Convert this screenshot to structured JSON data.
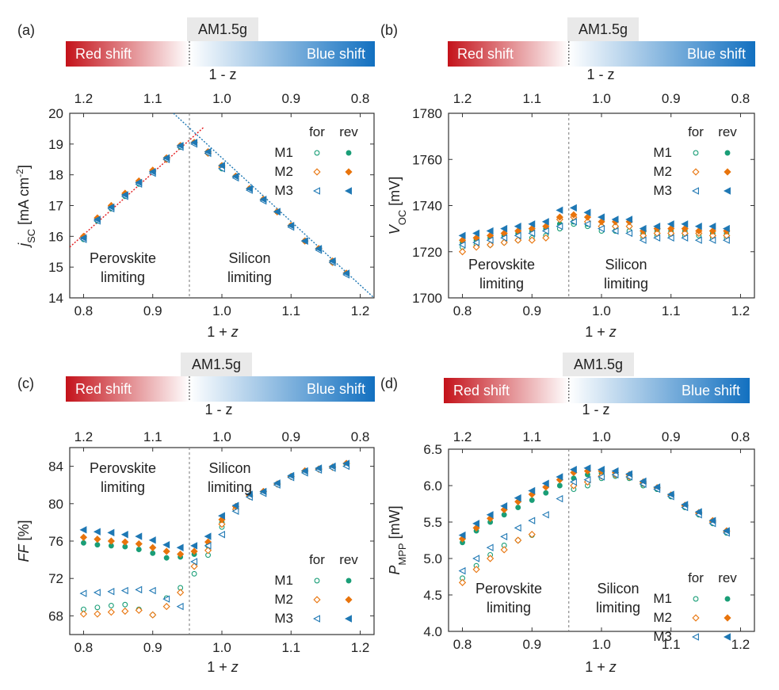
{
  "figure": {
    "spectrum_bar": {
      "red_label": "Red shift",
      "blue_label": "Blue shift",
      "am_label": "AM1.5g",
      "axis_label": "1 - z"
    },
    "legend": {
      "for_label": "for",
      "rev_label": "rev",
      "series": [
        "M1",
        "M2",
        "M3"
      ]
    },
    "colors": {
      "M1": "#1a9e77",
      "M2": "#e8740c",
      "M3": "#1f78b4",
      "red_fit": "#e31a1c",
      "blue_fit": "#1f78b4",
      "perovskite_text": "#d62728",
      "silicon_text": "#1f78b4",
      "bar_red": "#c4121a",
      "bar_blue": "#1270c0"
    }
  },
  "chart_data": [
    {
      "panel": "(a)",
      "type": "scatter",
      "xlabel": "1 + z",
      "ylabel": "j_SC [mA cm^-2]",
      "ylabel_parts": {
        "main": "j",
        "sub": "SC",
        "unit": " [mA cm",
        "sup": "-2",
        "end": "]"
      },
      "xlim": [
        0.78,
        1.22
      ],
      "ylim": [
        14,
        20
      ],
      "xticks": [
        "0.8",
        "0.9",
        "1.0",
        "1.1",
        "1.2"
      ],
      "yticks": [
        "14",
        "15",
        "16",
        "17",
        "18",
        "19",
        "20"
      ],
      "top_ticks": [
        "1.2",
        "1.1",
        "1.0",
        "0.9",
        "0.8"
      ],
      "divider_x": 0.953,
      "annotations": {
        "perovskite": [
          "Perovskite",
          "limiting"
        ],
        "silicon": [
          "Silicon",
          "limiting"
        ]
      },
      "fit_lines": [
        {
          "color": "red",
          "x": [
            0.78,
            0.974
          ],
          "y": [
            15.65,
            19.55
          ]
        },
        {
          "color": "blue",
          "x": [
            0.93,
            1.22
          ],
          "y": [
            20.0,
            14.0
          ]
        }
      ],
      "x": [
        0.8,
        0.82,
        0.84,
        0.86,
        0.88,
        0.9,
        0.92,
        0.94,
        0.96,
        0.98,
        1.0,
        1.02,
        1.04,
        1.06,
        1.08,
        1.1,
        1.12,
        1.14,
        1.16,
        1.18
      ],
      "series": [
        {
          "name": "M1 for",
          "values": [
            15.9,
            16.5,
            16.9,
            17.3,
            17.7,
            18.1,
            18.5,
            18.9,
            19.05,
            18.7,
            18.2,
            17.95,
            17.55,
            17.2,
            16.8,
            16.35,
            15.85,
            15.6,
            15.15,
            14.8
          ]
        },
        {
          "name": "M1 rev",
          "values": [
            15.95,
            16.55,
            16.95,
            17.35,
            17.75,
            18.1,
            18.55,
            18.95,
            19.05,
            18.75,
            18.3,
            17.95,
            17.55,
            17.2,
            16.8,
            16.35,
            15.85,
            15.6,
            15.2,
            14.8
          ]
        },
        {
          "name": "M2 for",
          "values": [
            15.95,
            16.55,
            16.95,
            17.35,
            17.75,
            18.1,
            18.5,
            18.95,
            19.05,
            18.7,
            18.25,
            17.95,
            17.55,
            17.2,
            16.8,
            16.35,
            15.85,
            15.6,
            15.15,
            14.8
          ]
        },
        {
          "name": "M2 rev",
          "values": [
            16.0,
            16.6,
            17.0,
            17.4,
            17.8,
            18.15,
            18.55,
            18.95,
            19.05,
            18.75,
            18.3,
            17.95,
            17.55,
            17.2,
            16.8,
            16.35,
            15.85,
            15.6,
            15.2,
            14.8
          ]
        },
        {
          "name": "M3 for",
          "values": [
            15.9,
            16.5,
            16.9,
            17.3,
            17.7,
            18.05,
            18.5,
            18.9,
            19.0,
            18.7,
            18.2,
            17.9,
            17.5,
            17.15,
            16.8,
            16.3,
            15.85,
            15.55,
            15.15,
            14.75
          ]
        },
        {
          "name": "M3 rev",
          "values": [
            15.95,
            16.55,
            16.95,
            17.35,
            17.75,
            18.1,
            18.55,
            18.95,
            19.05,
            18.75,
            18.3,
            17.95,
            17.55,
            17.2,
            16.8,
            16.35,
            15.85,
            15.6,
            15.2,
            14.8
          ]
        }
      ]
    },
    {
      "panel": "(b)",
      "type": "scatter",
      "xlabel": "1 + z",
      "ylabel": "V_OC [mV]",
      "ylabel_parts": {
        "main": "V",
        "sub": "OC",
        "unit": " [mV]",
        "sup": "",
        "end": ""
      },
      "xlim": [
        0.78,
        1.22
      ],
      "ylim": [
        1700,
        1780
      ],
      "xticks": [
        "0.8",
        "0.9",
        "1.0",
        "1.1",
        "1.2"
      ],
      "yticks": [
        "1700",
        "1720",
        "1740",
        "1760",
        "1780"
      ],
      "top_ticks": [
        "1.2",
        "1.1",
        "1.0",
        "0.9",
        "0.8"
      ],
      "divider_x": 0.953,
      "annotations": {
        "perovskite": [
          "Perovskite",
          "limiting"
        ],
        "silicon": [
          "Silicon",
          "limiting"
        ]
      },
      "fit_lines": [],
      "x": [
        0.8,
        0.82,
        0.84,
        0.86,
        0.88,
        0.9,
        0.92,
        0.94,
        0.96,
        0.98,
        1.0,
        1.02,
        1.04,
        1.06,
        1.08,
        1.1,
        1.12,
        1.14,
        1.16,
        1.18
      ],
      "series": [
        {
          "name": "M1 for",
          "values": [
            1722,
            1723,
            1723,
            1724,
            1725,
            1726,
            1727,
            1730,
            1732,
            1731,
            1729,
            1729,
            1729,
            1726,
            1727,
            1727,
            1727,
            1727,
            1726,
            1726
          ]
        },
        {
          "name": "M1 rev",
          "values": [
            1724,
            1725,
            1726,
            1727,
            1728,
            1729,
            1730,
            1732,
            1733,
            1732,
            1731,
            1731,
            1731,
            1728,
            1729,
            1729,
            1729,
            1728,
            1728,
            1728
          ]
        },
        {
          "name": "M2 for",
          "values": [
            1720,
            1722,
            1723,
            1724,
            1725,
            1725,
            1726,
            1734,
            1735,
            1733,
            1731,
            1731,
            1731,
            1727,
            1728,
            1728,
            1728,
            1728,
            1727,
            1727
          ]
        },
        {
          "name": "M2 rev",
          "values": [
            1725,
            1726,
            1727,
            1728,
            1729,
            1730,
            1731,
            1735,
            1736,
            1735,
            1733,
            1733,
            1733,
            1729,
            1730,
            1730,
            1730,
            1729,
            1729,
            1729
          ]
        },
        {
          "name": "M3 for",
          "values": [
            1723,
            1724,
            1725,
            1726,
            1727,
            1728,
            1729,
            1731,
            1733,
            1732,
            1730,
            1729,
            1728,
            1725,
            1726,
            1726,
            1726,
            1725,
            1725,
            1725
          ]
        },
        {
          "name": "M3 rev",
          "values": [
            1727,
            1728,
            1729,
            1730,
            1731,
            1732,
            1733,
            1738,
            1739,
            1737,
            1735,
            1734,
            1734,
            1730,
            1731,
            1732,
            1732,
            1731,
            1731,
            1730
          ]
        }
      ]
    },
    {
      "panel": "(c)",
      "type": "scatter",
      "xlabel": "1 + z",
      "ylabel": "FF [%]",
      "ylabel_parts": {
        "main": "FF",
        "sub": "",
        "unit": " [%]",
        "sup": "",
        "end": ""
      },
      "xlim": [
        0.78,
        1.22
      ],
      "ylim": [
        66,
        86
      ],
      "xticks": [
        "0.8",
        "0.9",
        "1.0",
        "1.1",
        "1.2"
      ],
      "yticks": [
        "68",
        "72",
        "76",
        "80",
        "84"
      ],
      "ytick_values": [
        68,
        72,
        76,
        80,
        84
      ],
      "top_ticks": [
        "1.2",
        "1.1",
        "1.0",
        "0.9",
        "0.8"
      ],
      "divider_x": 0.953,
      "annotations": {
        "perovskite": [
          "Perovskite",
          "limiting"
        ],
        "silicon": [
          "Silicon",
          "limiting"
        ]
      },
      "fit_lines": [],
      "x": [
        0.8,
        0.82,
        0.84,
        0.86,
        0.88,
        0.9,
        0.92,
        0.94,
        0.96,
        0.98,
        1.0,
        1.02,
        1.04,
        1.06,
        1.08,
        1.1,
        1.12,
        1.14,
        1.16,
        1.18
      ],
      "series": [
        {
          "name": "M1 for",
          "values": [
            68.7,
            68.9,
            69.1,
            69.2,
            68.7,
            68.1,
            69.9,
            71.0,
            72.5,
            74.5,
            77.5,
            79.3,
            80.8,
            81.2,
            82.1,
            82.9,
            83.4,
            83.7,
            83.9,
            84.2
          ]
        },
        {
          "name": "M1 rev",
          "values": [
            75.8,
            75.6,
            75.5,
            75.4,
            75.1,
            74.7,
            74.2,
            74.3,
            74.6,
            75.5,
            78.0,
            79.6,
            80.8,
            81.2,
            82.1,
            82.9,
            83.4,
            83.7,
            83.9,
            84.2
          ]
        },
        {
          "name": "M2 for",
          "values": [
            68.2,
            68.2,
            68.4,
            68.5,
            68.6,
            68.1,
            69.0,
            70.5,
            73.3,
            75.0,
            77.8,
            79.4,
            80.8,
            81.3,
            82.1,
            82.9,
            83.5,
            83.7,
            83.9,
            84.3
          ]
        },
        {
          "name": "M2 rev",
          "values": [
            76.4,
            76.2,
            76.0,
            75.9,
            75.7,
            75.3,
            74.9,
            74.6,
            74.9,
            75.9,
            78.3,
            79.7,
            80.9,
            81.3,
            82.1,
            82.9,
            83.5,
            83.7,
            83.9,
            84.3
          ]
        },
        {
          "name": "M3 for",
          "values": [
            70.4,
            70.5,
            70.6,
            70.7,
            70.8,
            70.7,
            69.8,
            69.0,
            73.8,
            75.5,
            76.7,
            79.2,
            80.7,
            81.1,
            82.0,
            82.8,
            83.3,
            83.6,
            83.8,
            84.0
          ]
        },
        {
          "name": "M3 rev",
          "values": [
            77.2,
            77.0,
            76.9,
            76.7,
            76.5,
            76.1,
            75.6,
            75.3,
            75.5,
            76.5,
            78.7,
            79.8,
            81.0,
            81.3,
            82.2,
            83.0,
            83.5,
            83.8,
            84.0,
            84.3
          ]
        }
      ]
    },
    {
      "panel": "(d)",
      "type": "scatter",
      "xlabel": "1 + z",
      "ylabel": "P_MPP [mW]",
      "ylabel_parts": {
        "main": "P",
        "sub": "MPP",
        "unit": " [mW]",
        "sup": "",
        "end": ""
      },
      "xlim": [
        0.78,
        1.22
      ],
      "ylim": [
        4.0,
        6.5
      ],
      "xticks": [
        "0.8",
        "0.9",
        "1.0",
        "1.1",
        "1.2"
      ],
      "yticks": [
        "4.0",
        "4.5",
        "5.0",
        "5.5",
        "6.0",
        "6.5"
      ],
      "top_ticks": [
        "1.2",
        "1.1",
        "1.0",
        "0.9",
        "0.8"
      ],
      "divider_x": 0.953,
      "annotations": {
        "perovskite": [
          "Perovskite",
          "limiting"
        ],
        "silicon": [
          "Silicon",
          "limiting"
        ]
      },
      "fit_lines": [],
      "x": [
        0.8,
        0.82,
        0.84,
        0.86,
        0.88,
        0.9,
        0.92,
        0.94,
        0.96,
        0.98,
        1.0,
        1.02,
        1.04,
        1.06,
        1.08,
        1.1,
        1.12,
        1.14,
        1.16,
        1.18
      ],
      "series": [
        {
          "name": "M1 for",
          "values": [
            4.73,
            4.9,
            5.05,
            5.18,
            5.25,
            5.32,
            null,
            null,
            5.95,
            6.0,
            6.1,
            6.13,
            6.1,
            6.0,
            5.95,
            5.85,
            5.7,
            5.6,
            5.48,
            5.35
          ]
        },
        {
          "name": "M1 rev",
          "values": [
            5.22,
            5.38,
            5.5,
            5.6,
            5.7,
            5.8,
            5.9,
            6.0,
            6.1,
            6.15,
            6.17,
            6.15,
            6.12,
            6.02,
            5.95,
            5.85,
            5.72,
            5.62,
            5.5,
            5.37
          ]
        },
        {
          "name": "M2 for",
          "values": [
            4.67,
            4.85,
            5.0,
            5.12,
            5.25,
            5.33,
            null,
            null,
            6.0,
            6.05,
            6.13,
            6.15,
            6.12,
            6.03,
            5.97,
            5.87,
            5.72,
            5.62,
            5.5,
            5.37
          ]
        },
        {
          "name": "M2 rev",
          "values": [
            5.27,
            5.42,
            5.55,
            5.67,
            5.78,
            5.88,
            5.98,
            6.08,
            6.18,
            6.2,
            6.2,
            6.18,
            6.15,
            6.05,
            5.97,
            5.87,
            5.73,
            5.63,
            5.52,
            5.38
          ]
        },
        {
          "name": "M3 for",
          "values": [
            4.83,
            5.0,
            5.15,
            5.3,
            5.42,
            5.52,
            5.6,
            5.82,
            6.05,
            6.08,
            6.12,
            6.15,
            6.12,
            6.02,
            5.95,
            5.85,
            5.7,
            5.6,
            5.48,
            5.35
          ]
        },
        {
          "name": "M3 rev",
          "values": [
            5.32,
            5.48,
            5.6,
            5.72,
            5.83,
            5.93,
            6.03,
            6.12,
            6.22,
            6.24,
            6.22,
            6.2,
            6.16,
            6.06,
            5.98,
            5.88,
            5.74,
            5.64,
            5.52,
            5.38
          ]
        }
      ]
    }
  ]
}
